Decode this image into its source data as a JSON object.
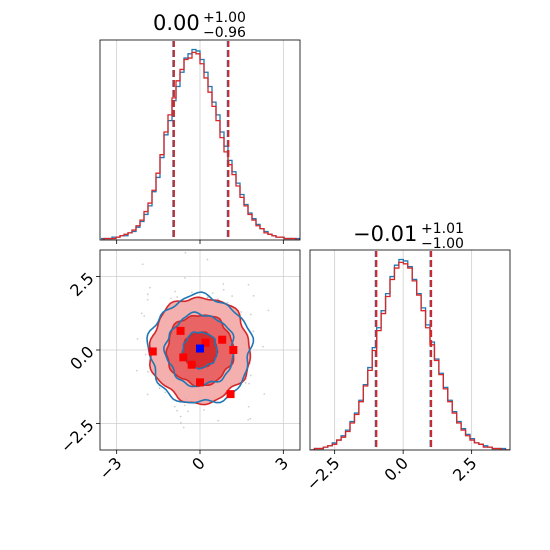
{
  "chart_data": [
    {
      "type": "histogram",
      "panel": "marginal-x0",
      "title": {
        "value": "0.00",
        "sup": "+1.00",
        "sub": "−0.96"
      },
      "xlim": [
        -3.6,
        3.6
      ],
      "xticks": [
        -3,
        0,
        3
      ],
      "grid": true,
      "series": [
        {
          "color": "#1f77b4",
          "quantiles": [
            -0.96,
            1.0
          ],
          "values": [
            1,
            1,
            1,
            2,
            2,
            3,
            3,
            5,
            6,
            9,
            13,
            18,
            24,
            34,
            44,
            58,
            74,
            84,
            98,
            108,
            118,
            128,
            131,
            134,
            133,
            127,
            118,
            108,
            97,
            88,
            76,
            66,
            56,
            48,
            40,
            32,
            25,
            19,
            15,
            11,
            8,
            6,
            4,
            3,
            2,
            2,
            1,
            1,
            1,
            1
          ]
        },
        {
          "color": "#d62728",
          "quantiles": [
            -0.96,
            1.0
          ],
          "values": [
            0,
            1,
            1,
            1,
            2,
            3,
            4,
            5,
            7,
            10,
            14,
            20,
            26,
            35,
            47,
            60,
            76,
            88,
            100,
            112,
            120,
            127,
            128,
            132,
            131,
            124,
            114,
            104,
            94,
            84,
            72,
            62,
            53,
            46,
            38,
            30,
            24,
            18,
            14,
            10,
            8,
            5,
            4,
            3,
            2,
            2,
            1,
            1,
            1,
            0
          ]
        }
      ]
    },
    {
      "type": "contour",
      "panel": "joint",
      "xlim": [
        -3.6,
        3.6
      ],
      "ylim": [
        -3.4,
        3.4
      ],
      "xticks": [
        -3,
        0,
        3
      ],
      "yticks": [
        -2.5,
        0.0,
        2.5
      ],
      "ytick_labels": [
        "−2.5",
        "0.0",
        "2.5"
      ],
      "grid": true,
      "levels": [
        0.6,
        1.2,
        1.8
      ],
      "truth_marker": {
        "x": 0.0,
        "y": 0.05,
        "color": "#0000ff"
      },
      "extra_markers": [
        {
          "x": -1.7,
          "y": -0.05
        },
        {
          "x": -0.7,
          "y": 0.65
        },
        {
          "x": -0.6,
          "y": -0.25
        },
        {
          "x": -0.3,
          "y": -0.5
        },
        {
          "x": 0.2,
          "y": 0.25
        },
        {
          "x": 0.8,
          "y": 0.35
        },
        {
          "x": 1.1,
          "y": -1.5
        },
        {
          "x": 0.0,
          "y": -1.1
        },
        {
          "x": 1.2,
          "y": 0.0
        }
      ],
      "series": [
        {
          "color": "#1f77b4",
          "filled": false
        },
        {
          "color": "#d62728",
          "filled": true,
          "fill_colors": [
            "#f3a6a6",
            "#e85c5c",
            "#d62728"
          ]
        }
      ]
    },
    {
      "type": "histogram",
      "panel": "marginal-x1",
      "title": {
        "value": "−0.01",
        "sup": "+1.01",
        "sub": "−1.00"
      },
      "xlim": [
        -3.4,
        3.9
      ],
      "xticks": [
        -2.5,
        0.0,
        2.5
      ],
      "xtick_labels": [
        "−2.5",
        "0.0",
        "2.5"
      ],
      "grid": true,
      "series": [
        {
          "color": "#1f77b4",
          "quantiles": [
            -1.0,
            1.0
          ],
          "values": [
            0,
            1,
            1,
            2,
            3,
            5,
            7,
            10,
            14,
            20,
            26,
            35,
            46,
            58,
            72,
            86,
            98,
            110,
            122,
            130,
            134,
            133,
            129,
            120,
            110,
            100,
            88,
            76,
            64,
            54,
            44,
            35,
            27,
            20,
            15,
            11,
            8,
            5,
            4,
            3,
            2,
            1,
            1,
            1,
            0
          ]
        },
        {
          "color": "#d62728",
          "quantiles": [
            -1.0,
            1.0
          ],
          "values": [
            0,
            1,
            1,
            2,
            3,
            4,
            7,
            9,
            13,
            19,
            25,
            34,
            45,
            56,
            70,
            84,
            96,
            108,
            120,
            128,
            132,
            131,
            128,
            119,
            109,
            98,
            86,
            74,
            63,
            53,
            43,
            34,
            26,
            19,
            14,
            10,
            7,
            5,
            4,
            2,
            2,
            1,
            1,
            0,
            0
          ]
        }
      ]
    }
  ]
}
